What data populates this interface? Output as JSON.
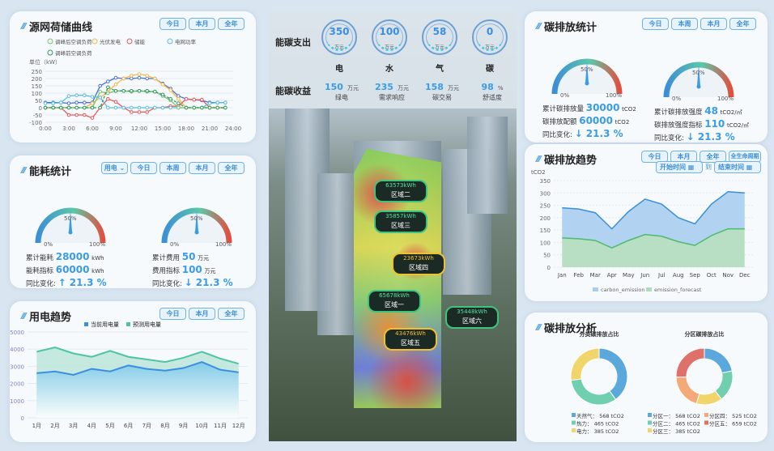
{
  "buttons": {
    "today": "今日",
    "week": "本周",
    "month": "本月",
    "year": "全年",
    "lifecycle": "全生命周期",
    "type": "用电"
  },
  "source": {
    "title": "源网荷储曲线",
    "unit": "单位（kW）",
    "legend": [
      "调峰后空调负荷",
      "光伏发电",
      "储能",
      "电网功率",
      "调峰前空调负荷"
    ],
    "chart_data": {
      "type": "line",
      "x": [
        "0:00",
        "1:00",
        "2:00",
        "3:00",
        "4:00",
        "5:00",
        "6:00",
        "7:00",
        "8:00",
        "9:00",
        "10:00",
        "11:00",
        "12:00",
        "13:00",
        "14:00",
        "15:00",
        "16:00",
        "17:00",
        "18:00",
        "19:00",
        "20:00",
        "21:00",
        "22:00",
        "23:00"
      ],
      "xticks": [
        "0:00",
        "3:00",
        "6:00",
        "9:00",
        "12:00",
        "15:00",
        "18:00",
        "21:00",
        "24:00"
      ],
      "yticks": [
        250,
        200,
        150,
        100,
        50,
        0,
        -50,
        -100
      ],
      "ylim": [
        -100,
        250
      ],
      "series": [
        {
          "name": "",
          "color": "#4a6fd6",
          "values": [
            35,
            35,
            35,
            30,
            35,
            35,
            35,
            150,
            180,
            205,
            200,
            200,
            205,
            200,
            200,
            165,
            130,
            80,
            60,
            55,
            50,
            35,
            35,
            35
          ]
        },
        {
          "name": "光伏发电",
          "color": "#f5b94a",
          "values": [
            0,
            0,
            0,
            0,
            0,
            0,
            30,
            70,
            110,
            160,
            200,
            220,
            230,
            220,
            200,
            160,
            120,
            60,
            0,
            0,
            0,
            0,
            0,
            0
          ]
        },
        {
          "name": "储能",
          "color": "#e8585a",
          "values": [
            0,
            0,
            0,
            -50,
            -50,
            -50,
            -70,
            0,
            60,
            40,
            0,
            -30,
            -30,
            -30,
            0,
            0,
            10,
            10,
            60,
            55,
            55,
            0,
            0,
            0
          ]
        },
        {
          "name": "电网功率",
          "color": "#5bbde0",
          "values": [
            30,
            30,
            35,
            80,
            85,
            85,
            75,
            70,
            0,
            0,
            0,
            0,
            0,
            0,
            0,
            0,
            0,
            0,
            0,
            0,
            0,
            30,
            35,
            35
          ]
        },
        {
          "name": "调峰后空调负荷",
          "color": "#7cc46a",
          "values": [
            0,
            0,
            0,
            0,
            0,
            0,
            0,
            110,
            100,
            115,
            115,
            110,
            115,
            110,
            110,
            80,
            50,
            0,
            0,
            0,
            0,
            0,
            0,
            0
          ]
        },
        {
          "name": "调峰前空调负荷",
          "color": "#2e9a5e",
          "dashed": true,
          "values": [
            0,
            0,
            0,
            0,
            0,
            0,
            0,
            0,
            140,
            115,
            115,
            115,
            115,
            115,
            110,
            90,
            60,
            30,
            0,
            0,
            0,
            0,
            0,
            0
          ]
        }
      ]
    }
  },
  "energy": {
    "title": "能耗统计",
    "g1": {
      "p0": "0%",
      "p50": "50%",
      "p100": "100%",
      "r1": "累计能耗",
      "v1": "28000",
      "u1": "kWh",
      "r2": "能耗指标",
      "v2": "60000",
      "u2": "kWh",
      "r3": "同比变化:",
      "v3": "↑ 21.3 %"
    },
    "g2": {
      "p0": "0%",
      "p50": "50%",
      "p100": "100%",
      "r1": "累计费用",
      "v1": "50",
      "u1": "万元",
      "r2": "费用指标",
      "v2": "100",
      "u2": "万元",
      "r3": "同比变化:",
      "v3": "↓ 21.3 %"
    }
  },
  "elec": {
    "title": "用电趋势",
    "legend": [
      "当前用电量",
      "预测用电量"
    ],
    "chart_data": {
      "type": "area",
      "categories": [
        "1月",
        "2月",
        "3月",
        "4月",
        "5月",
        "6月",
        "7月",
        "8月",
        "9月",
        "10月",
        "11月",
        "12月"
      ],
      "yticks": [
        5000,
        4000,
        3000,
        2000,
        1000,
        0
      ],
      "ylim": [
        0,
        5000
      ],
      "series": [
        {
          "name": "当前用电量",
          "color": "#3a8fe0",
          "values": [
            2600,
            2700,
            2500,
            2850,
            2700,
            3050,
            2850,
            2750,
            2900,
            3250,
            2800,
            2650
          ]
        },
        {
          "name": "预测用电量",
          "color": "#4ec4a4",
          "values": [
            3850,
            4100,
            3750,
            3550,
            3900,
            3550,
            3400,
            3250,
            3500,
            3850,
            3450,
            3150
          ]
        }
      ]
    }
  },
  "center": {
    "out_label": "能碳支出",
    "in_label": "能碳收益",
    "out": [
      {
        "v": "350",
        "u": "万元",
        "n": "电"
      },
      {
        "v": "100",
        "u": "万元",
        "n": "水"
      },
      {
        "v": "58",
        "u": "万元",
        "n": "气"
      },
      {
        "v": "0",
        "u": "万元",
        "n": "碳"
      }
    ],
    "in": [
      {
        "v": "150",
        "u": "万元",
        "n": "绿电"
      },
      {
        "v": "235",
        "u": "万元",
        "n": "需求响应"
      },
      {
        "v": "158",
        "u": "万元",
        "n": "碳交易"
      },
      {
        "v": "98",
        "u": "%",
        "n": "舒适度"
      }
    ],
    "zones": [
      {
        "v": "63573kWh",
        "n": "区域二"
      },
      {
        "v": "35857kWh",
        "n": "区域三"
      },
      {
        "v": "23673kWh",
        "n": "区域四"
      },
      {
        "v": "65678kWh",
        "n": "区域一"
      },
      {
        "v": "35448kWh",
        "n": "区域六"
      },
      {
        "v": "43476kWh",
        "n": "区域五"
      }
    ]
  },
  "carbon": {
    "title": "碳排放统计",
    "g1": {
      "p0": "0%",
      "p50": "50%",
      "p100": "100%",
      "r1": "累计碳排放量",
      "v1": "30000",
      "u1": "tCO2",
      "r2": "碳排放配额",
      "v2": "60000",
      "u2": "tCO2",
      "r3": "同比变化:",
      "v3": "↓ 21.3 %"
    },
    "g2": {
      "p0": "0%",
      "p50": "50%",
      "p100": "100%",
      "r1": "累计碳排放强度",
      "v1": "48",
      "u1": "tCO2/㎡",
      "r2": "碳排放强度指标",
      "v2": "110",
      "u2": "tCO2/㎡",
      "r3": "同比变化:",
      "v3": "↓ 21.3 %"
    }
  },
  "trend": {
    "title": "碳排放趋势",
    "start": "开始时间",
    "to": "到",
    "end": "结束时间",
    "unit": "tCO2",
    "chart_data": {
      "type": "area",
      "categories": [
        "Jan",
        "Feb",
        "Mar",
        "Apr",
        "May",
        "Jun",
        "Jul",
        "Aug",
        "Sep",
        "Oct",
        "Nov",
        "Dec"
      ],
      "yticks": [
        350,
        300,
        250,
        200,
        150,
        100,
        50,
        0
      ],
      "ylim": [
        0,
        350
      ],
      "series": [
        {
          "name": "carbon_emission",
          "color": "#3a8fd6",
          "fill": "#a8cdef",
          "values": [
            240,
            235,
            220,
            155,
            225,
            275,
            255,
            200,
            175,
            255,
            305,
            300
          ]
        },
        {
          "name": "emission_forecast",
          "color": "#4cbb6c",
          "fill": "#b0dcbc",
          "values": [
            118,
            115,
            108,
            78,
            108,
            132,
            125,
            103,
            88,
            128,
            155,
            155
          ]
        }
      ]
    }
  },
  "analysis": {
    "title": "碳排放分析",
    "chart_data": [
      {
        "type": "pie",
        "title": "分类碳排放占比",
        "labels": [
          "天然气",
          "热力",
          "电力"
        ],
        "values": [
          568,
          465,
          385
        ],
        "unit": "tCO2",
        "colors": [
          "#5aa8dc",
          "#6fcfae",
          "#f0d66a"
        ]
      },
      {
        "type": "pie",
        "title": "分区碳排放占比",
        "labels": [
          "分区一",
          "分区二",
          "分区三",
          "分区四",
          "分区五"
        ],
        "values": [
          568,
          465,
          385,
          525,
          659
        ],
        "unit": "tCO2",
        "colors": [
          "#5aa8dc",
          "#6fcfae",
          "#f0d66a",
          "#f5a878",
          "#e0706a"
        ]
      }
    ]
  }
}
